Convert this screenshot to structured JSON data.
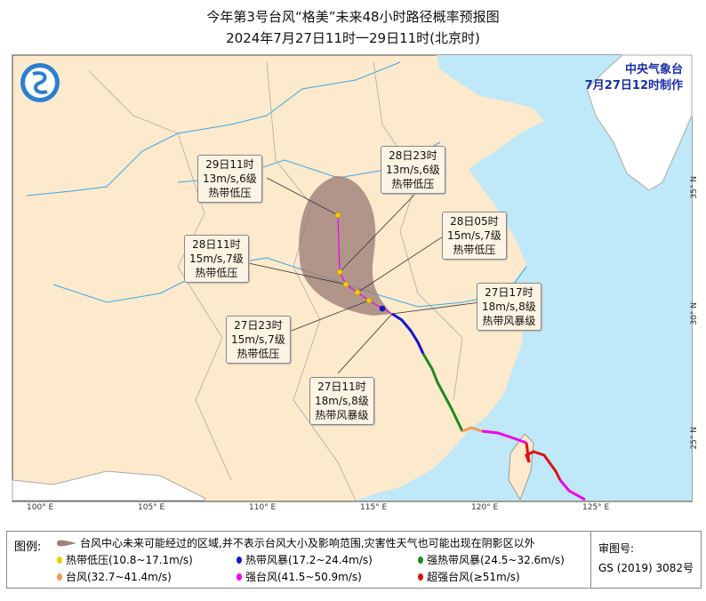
{
  "title": "今年第3号台风“格美”未来48小时路径概率预报图",
  "subtitle": "2024年7月27日11时一29日11时(北京时)",
  "agency": {
    "name": "中央气象台",
    "issued": "7月27日12时制作"
  },
  "axes": {
    "lon": [
      "100° E",
      "105° E",
      "110° E",
      "115° E",
      "120° E",
      "125° E"
    ],
    "lat": [
      "35° N",
      "30° N",
      "25° N"
    ]
  },
  "forecast_labels": [
    {
      "time": "29日11时",
      "wind": "13m/s,6级",
      "category": "热带低压"
    },
    {
      "time": "28日23时",
      "wind": "13m/s,6级",
      "category": "热带低压"
    },
    {
      "time": "28日05时",
      "wind": "15m/s,7级",
      "category": "热带低压"
    },
    {
      "time": "28日11时",
      "wind": "15m/s,7级",
      "category": "热带低压"
    },
    {
      "time": "27日17时",
      "wind": "18m/s,8级",
      "category": "热带风暴级"
    },
    {
      "time": "27日23时",
      "wind": "15m/s,7级",
      "category": "热带低压"
    },
    {
      "time": "27日11时",
      "wind": "18m/s,8级",
      "category": "热带风暴级"
    }
  ],
  "legend": {
    "label": "图例:",
    "cone": "台风中心未来可能经过的区域,并不表示台风大小及影响范围,灾害性天气也可能出现在阴影区以外",
    "items": [
      {
        "text": "热带低压(10.8~17.1m/s)",
        "color": "#f2d000"
      },
      {
        "text": "热带风暴(17.2~24.4m/s)",
        "color": "#1515d0"
      },
      {
        "text": "强热带风暴(24.5~32.6m/s)",
        "color": "#1e8a1e"
      },
      {
        "text": "台风(32.7~41.4m/s)",
        "color": "#f59a50"
      },
      {
        "text": "强台风(41.5~50.9m/s)",
        "color": "#f000f0"
      },
      {
        "text": "超强台风(≥51m/s)",
        "color": "#e01010"
      }
    ],
    "review_label": "审图号:",
    "review_code": "GS (2019) 3082号"
  },
  "colors": {
    "land": "#fde9cc",
    "sea": "#bfe8f8",
    "cone": "#9e7f7b",
    "track": "#f000f0"
  }
}
